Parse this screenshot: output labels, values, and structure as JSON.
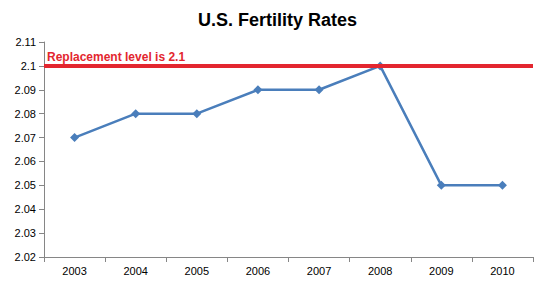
{
  "chart_data": {
    "type": "line",
    "title": "U.S. Fertility Rates",
    "categories": [
      "2003",
      "2004",
      "2005",
      "2006",
      "2007",
      "2008",
      "2009",
      "2010"
    ],
    "values": [
      2.07,
      2.08,
      2.08,
      2.09,
      2.09,
      2.1,
      2.05,
      2.05
    ],
    "color": "#4a7ebb",
    "marker": "diamond",
    "ylim": [
      2.02,
      2.11
    ],
    "yticks": [
      2.02,
      2.03,
      2.04,
      2.05,
      2.06,
      2.07,
      2.08,
      2.09,
      2.1,
      2.11
    ],
    "grid": false,
    "annotations": [
      {
        "text": "Replacement level is 2.1",
        "y": 2.1,
        "color": "#e3262f"
      }
    ]
  }
}
